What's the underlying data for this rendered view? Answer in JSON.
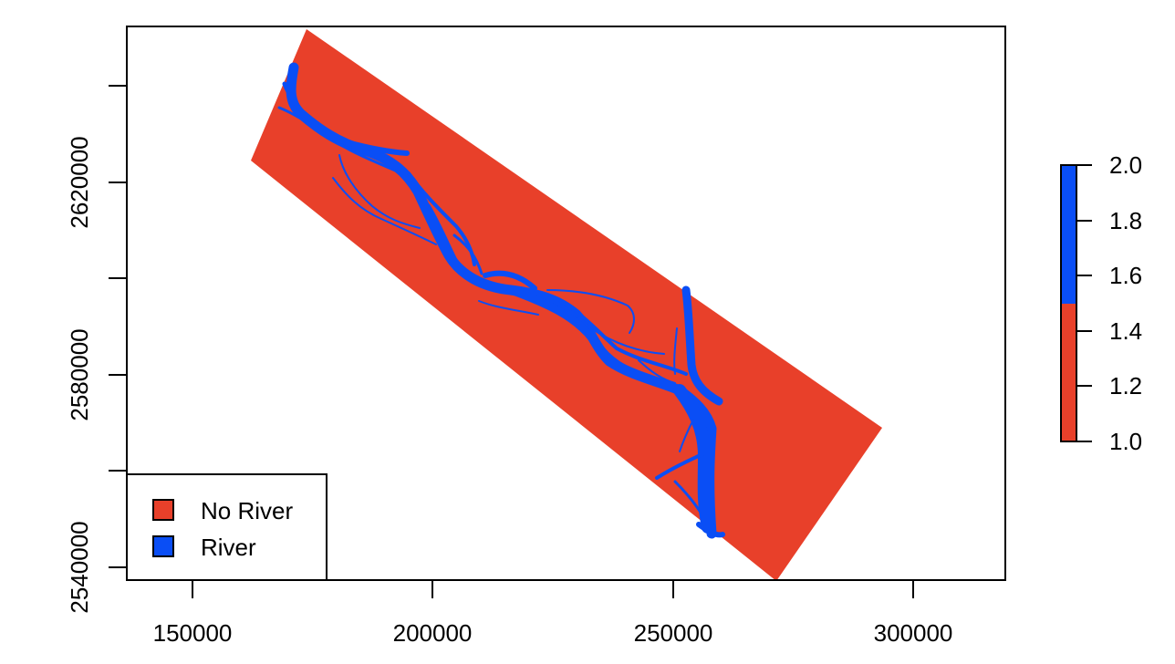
{
  "map": {
    "x_axis": {
      "ticks": [
        "150000",
        "200000",
        "250000",
        "300000"
      ]
    },
    "y_axis": {
      "ticks": [
        "2540000",
        "2580000",
        "2620000"
      ]
    },
    "colors": {
      "no_river": "#e8402a",
      "river": "#0a4ef5"
    },
    "legend": {
      "position": "bottom-left",
      "items": [
        {
          "label": "No River",
          "color": "#e8402a"
        },
        {
          "label": "River",
          "color": "#0a4ef5"
        }
      ]
    },
    "colorbar": {
      "ticks": [
        "2.0",
        "1.8",
        "1.6",
        "1.4",
        "1.2",
        "1.0"
      ],
      "range": [
        1.0,
        2.0
      ]
    }
  }
}
